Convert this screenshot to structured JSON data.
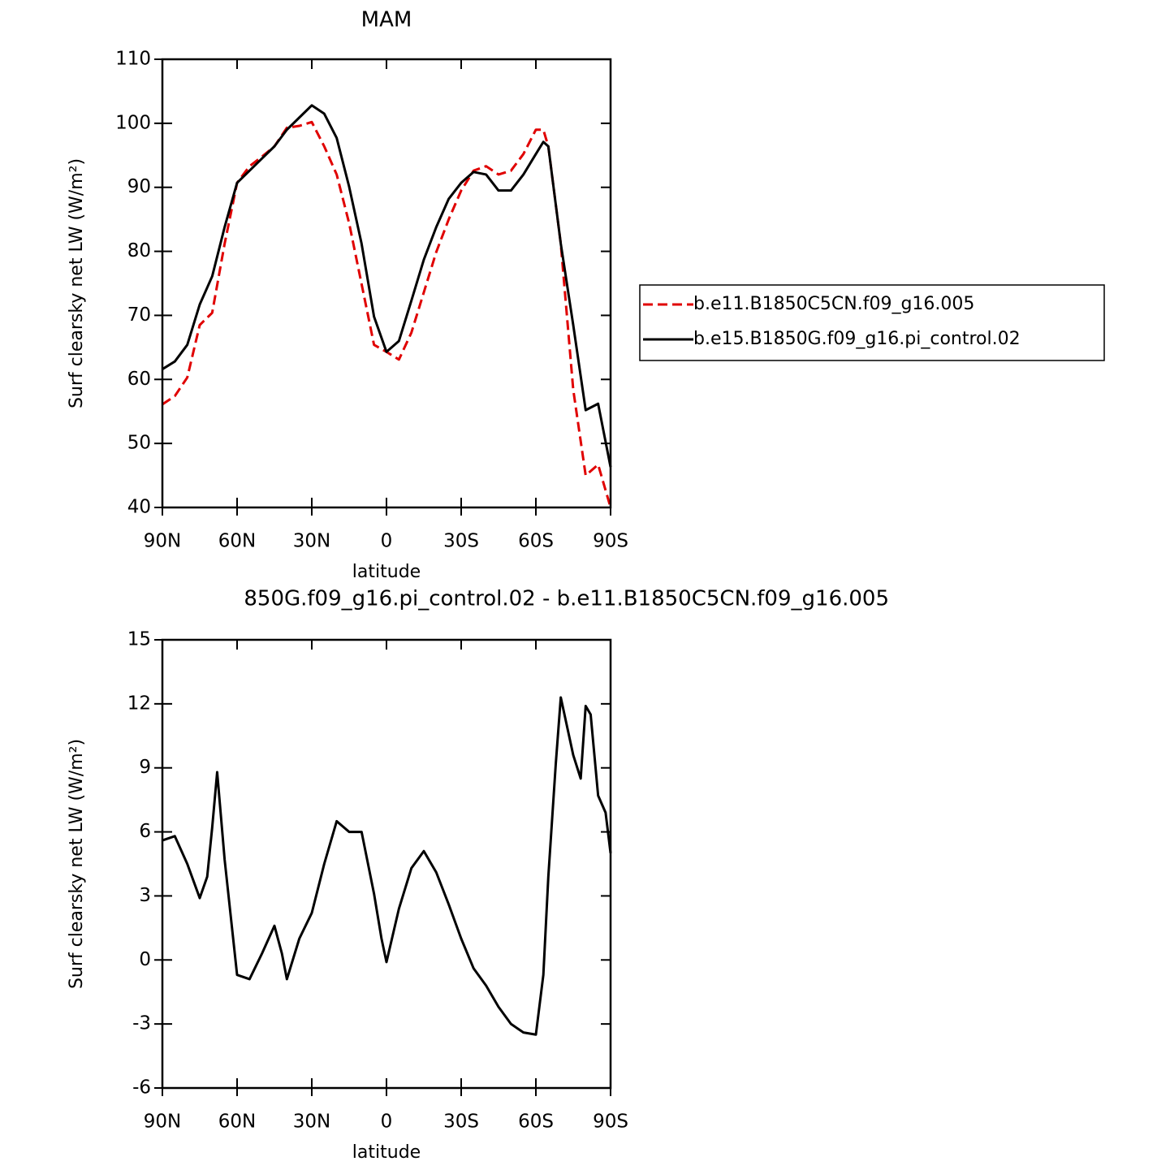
{
  "chart_data": [
    {
      "type": "line",
      "title": "MAM",
      "xlabel": "latitude",
      "ylabel": "Surf clearsky net LW (W/m²)",
      "x": [
        90,
        85,
        80,
        75,
        70,
        65,
        60,
        55,
        50,
        45,
        40,
        35,
        30,
        25,
        20,
        15,
        10,
        5,
        0,
        -5,
        -10,
        -15,
        -20,
        -25,
        -30,
        -35,
        -40,
        -45,
        -50,
        -55,
        -60,
        -63,
        -65,
        -70,
        -75,
        -80,
        -85,
        -90
      ],
      "xlim": [
        90,
        -90
      ],
      "xticks": [
        {
          "value": 90,
          "label": "90N"
        },
        {
          "value": 60,
          "label": "60N"
        },
        {
          "value": 30,
          "label": "30N"
        },
        0,
        {
          "value": -30,
          "label": "30S"
        },
        {
          "value": -60,
          "label": "60S"
        },
        {
          "value": -90,
          "label": "90S"
        }
      ],
      "ylim": [
        40,
        110
      ],
      "yticks": [
        40,
        50,
        60,
        70,
        80,
        90,
        100,
        110
      ],
      "legend": "right",
      "series": [
        {
          "name": "b.e11.B1850C5CN.f09_g16.005",
          "color": "#e00000",
          "linestyle": "dashed",
          "values": [
            56.1,
            57.4,
            60.3,
            68.5,
            70.4,
            81.2,
            90.7,
            93.3,
            94.8,
            96.4,
            99.3,
            99.6,
            100.2,
            96.4,
            92.0,
            84.4,
            74.9,
            65.4,
            64.3,
            63.1,
            67.3,
            73.6,
            79.9,
            85.0,
            89.5,
            92.6,
            93.3,
            92.0,
            92.6,
            95.2,
            99.0,
            99.0,
            96.4,
            81.2,
            58.4,
            45.0,
            46.7,
            40.0
          ]
        },
        {
          "name": "b.e15.B1850G.f09_g16.pi_control.02",
          "color": "#000000",
          "linestyle": "solid",
          "values": [
            61.6,
            62.8,
            65.4,
            71.7,
            76.1,
            83.8,
            90.7,
            92.6,
            94.5,
            96.4,
            99.0,
            100.9,
            102.8,
            101.5,
            97.7,
            90.1,
            81.2,
            69.8,
            64.3,
            66.0,
            72.3,
            78.7,
            83.8,
            88.2,
            90.7,
            92.4,
            92.0,
            89.5,
            89.5,
            92.0,
            95.2,
            97.1,
            96.4,
            81.2,
            68.5,
            55.2,
            56.2,
            46.3
          ]
        }
      ]
    },
    {
      "type": "line",
      "title": "850G.f09_g16.pi_control.02 - b.e11.B1850C5CN.f09_g16.005",
      "xlabel": "latitude",
      "ylabel": "Surf clearsky net LW (W/m²)",
      "x": [
        90,
        85,
        80,
        75,
        72,
        70,
        68,
        65,
        60,
        55,
        50,
        45,
        42,
        40,
        35,
        30,
        25,
        20,
        15,
        10,
        5,
        2,
        0,
        -5,
        -10,
        -15,
        -20,
        -25,
        -30,
        -35,
        -40,
        -45,
        -50,
        -55,
        -60,
        -63,
        -65,
        -68,
        -70,
        -75,
        -78,
        -80,
        -82,
        -85,
        -88,
        -90
      ],
      "xlim": [
        90,
        -90
      ],
      "xticks": [
        {
          "value": 90,
          "label": "90N"
        },
        {
          "value": 60,
          "label": "60N"
        },
        {
          "value": 30,
          "label": "30N"
        },
        0,
        {
          "value": -30,
          "label": "30S"
        },
        {
          "value": -60,
          "label": "60S"
        },
        {
          "value": -90,
          "label": "90S"
        }
      ],
      "ylim": [
        -6,
        15
      ],
      "yticks": [
        -6,
        -3,
        0,
        3,
        6,
        9,
        12,
        15
      ],
      "series": [
        {
          "color": "#000000",
          "linestyle": "solid",
          "values": [
            5.6,
            5.8,
            4.5,
            2.9,
            3.9,
            6.2,
            8.8,
            4.7,
            -0.7,
            -0.9,
            0.3,
            1.6,
            0.3,
            -0.9,
            1.0,
            2.2,
            4.5,
            6.5,
            6.0,
            6.0,
            3.1,
            1.0,
            -0.1,
            2.4,
            4.3,
            5.1,
            4.1,
            2.6,
            1.0,
            -0.4,
            -1.2,
            -2.2,
            -3.0,
            -3.4,
            -3.5,
            -0.7,
            3.9,
            9.2,
            12.3,
            9.6,
            8.5,
            11.9,
            11.5,
            7.7,
            6.9,
            5.0
          ]
        }
      ]
    }
  ]
}
